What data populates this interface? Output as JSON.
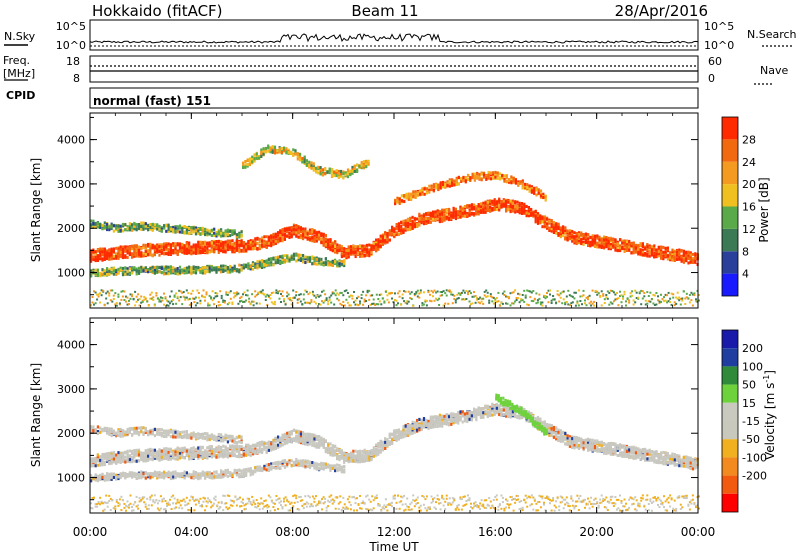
{
  "header": {
    "station": "Hokkaido (fitACF)",
    "beam": "Beam 11",
    "date": "28/Apr/2016"
  },
  "top_panels": {
    "nsky_label": "N.Sky",
    "nsky_ticks": [
      "10^5",
      "10^0"
    ],
    "nsearch_label": "N.Search",
    "nsearch_ticks": [
      "10^5",
      "10^0"
    ],
    "freq_label_line1": "Freq.",
    "freq_label_line2": "[MHz]",
    "freq_ticks": [
      "18",
      "8"
    ],
    "nave_label": "Nave",
    "nave_ticks": [
      "60",
      "0"
    ],
    "cpid_label": "CPID",
    "cpid_text": "normal (fast) 151"
  },
  "colors": {
    "power_scale": [
      "#1a1aff",
      "#2a3f9a",
      "#3c7a55",
      "#5aaa4a",
      "#f0c020",
      "#f59a20",
      "#f26a10",
      "#ff2a00"
    ],
    "velocity_scale": [
      "#1a1aaa",
      "#1f3ea0",
      "#2f8a3a",
      "#6ed23c",
      "#c9c9c0",
      "#c8c8bd",
      "#f0b020",
      "#f28a20",
      "#f25a10",
      "#ff0000"
    ],
    "power_main": "#ff3a00",
    "velocity_main": "#c8c8c0"
  },
  "chart_data": [
    {
      "type": "heatmap",
      "name": "power",
      "title": "",
      "xlabel": "",
      "ylabel": "Slant Range [km]",
      "y_ticks": [
        "1000",
        "2000",
        "3000",
        "4000"
      ],
      "ylim": [
        200,
        4600
      ],
      "colorbar_label": "Power [dB]",
      "colorbar_ticks": [
        "4",
        "8",
        "12",
        "16",
        "20",
        "24",
        "28"
      ],
      "colorbar_range": [
        0,
        32
      ],
      "bands": [
        {
          "name": "main",
          "x": [
            0,
            2,
            4,
            5,
            6,
            7,
            8,
            9,
            10,
            11,
            12,
            13,
            14,
            15,
            16,
            17,
            18,
            19,
            20,
            21,
            22,
            23,
            24
          ],
          "y": [
            1380,
            1500,
            1550,
            1580,
            1600,
            1700,
            1950,
            1800,
            1450,
            1500,
            1950,
            2200,
            2300,
            2400,
            2550,
            2450,
            2100,
            1800,
            1700,
            1600,
            1500,
            1400,
            1300
          ],
          "power": 26
        },
        {
          "name": "lower",
          "x": [
            0,
            2,
            4,
            6,
            8,
            9,
            10
          ],
          "y": [
            1000,
            1050,
            1050,
            1100,
            1350,
            1250,
            1200
          ],
          "power": 14
        },
        {
          "name": "upper",
          "x": [
            0,
            1,
            2,
            3,
            4,
            5,
            6
          ],
          "y": [
            2100,
            2000,
            2050,
            2000,
            1950,
            1900,
            1850
          ],
          "power": 14
        },
        {
          "name": "high-morning",
          "x": [
            6,
            7,
            8,
            9,
            10,
            11
          ],
          "y": [
            3400,
            3800,
            3700,
            3300,
            3200,
            3500
          ],
          "power": 18
        },
        {
          "name": "evening-top",
          "x": [
            12,
            13,
            14,
            15,
            16,
            17,
            18
          ],
          "y": [
            2600,
            2800,
            3000,
            3150,
            3200,
            3000,
            2700
          ],
          "power": 24
        }
      ]
    },
    {
      "type": "heatmap",
      "name": "velocity",
      "title": "",
      "xlabel": "Time UT",
      "ylabel": "Slant Range [km]",
      "x_ticks": [
        "00:00",
        "04:00",
        "08:00",
        "12:00",
        "16:00",
        "20:00",
        "00:00"
      ],
      "xlim": [
        0,
        24
      ],
      "y_ticks": [
        "1000",
        "2000",
        "3000",
        "4000"
      ],
      "ylim": [
        200,
        4600
      ],
      "colorbar_label": "Velocity [m s^-1]",
      "colorbar_ticks": [
        "200",
        "100",
        "50",
        "15",
        "-15",
        "-50",
        "-100",
        "-200"
      ],
      "bands": [
        {
          "name": "main",
          "x": [
            0,
            2,
            4,
            5,
            6,
            7,
            8,
            9,
            10,
            11,
            12,
            13,
            14,
            15,
            16,
            17,
            18,
            19,
            20,
            21,
            22,
            23,
            24
          ],
          "y": [
            1380,
            1500,
            1550,
            1580,
            1600,
            1700,
            1950,
            1800,
            1450,
            1500,
            1950,
            2200,
            2300,
            2400,
            2550,
            2450,
            2100,
            1800,
            1700,
            1600,
            1500,
            1400,
            1300
          ],
          "velocity": 0
        },
        {
          "name": "lower",
          "x": [
            0,
            2,
            4,
            6,
            8,
            9,
            10
          ],
          "y": [
            1000,
            1050,
            1050,
            1100,
            1350,
            1250,
            1200
          ],
          "velocity": 0
        },
        {
          "name": "upper",
          "x": [
            0,
            1,
            2,
            3,
            4,
            5,
            6
          ],
          "y": [
            2100,
            2000,
            2050,
            2000,
            1950,
            1900,
            1850
          ],
          "velocity": 0
        },
        {
          "name": "green-patch",
          "x": [
            16,
            17,
            18
          ],
          "y": [
            2800,
            2500,
            2000
          ],
          "velocity": 40
        }
      ]
    }
  ]
}
